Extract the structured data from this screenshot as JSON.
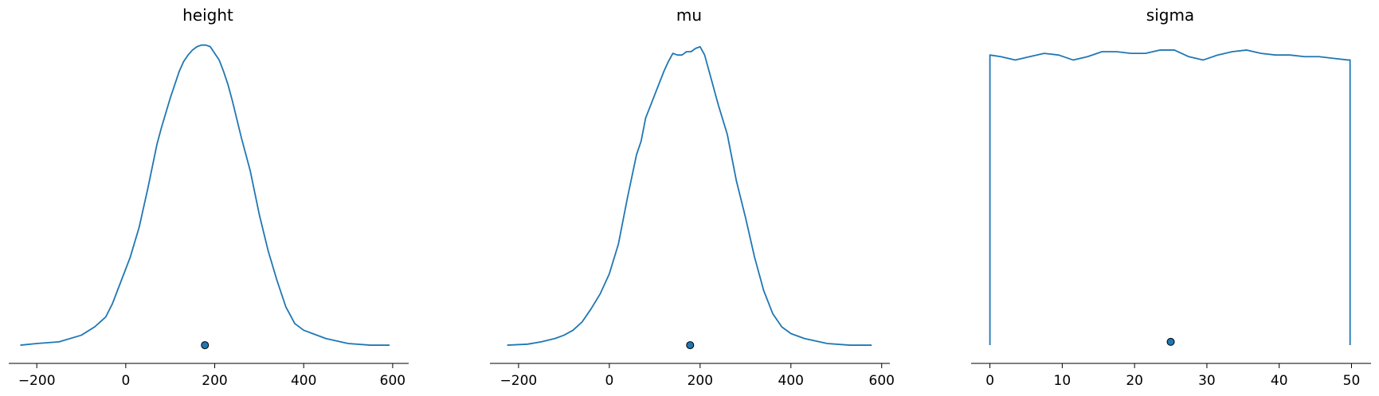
{
  "chart_data": [
    {
      "type": "area",
      "title": "height",
      "xlabel": "",
      "ylabel": "",
      "xlim": [
        -263,
        636
      ],
      "ylim": [
        0,
        1.0
      ],
      "xticks": [
        -200,
        0,
        200,
        400,
        600
      ],
      "xtick_labels": [
        "−200",
        "0",
        "200",
        "400",
        "600"
      ],
      "grid": false,
      "line_color": "#1f77b4",
      "point_color": "#1f77b4",
      "point_estimate": {
        "x": 178,
        "y": 0.055
      },
      "curve": {
        "x": [
          -237,
          -200,
          -150,
          -100,
          -70,
          -45,
          -30,
          -10,
          10,
          30,
          50,
          70,
          80,
          100,
          120,
          130,
          140,
          150,
          160,
          170,
          180,
          190,
          200,
          210,
          220,
          230,
          240,
          260,
          280,
          300,
          320,
          340,
          360,
          380,
          400,
          420,
          450,
          500,
          550,
          593
        ],
        "y": [
          0.055,
          0.06,
          0.065,
          0.085,
          0.11,
          0.14,
          0.18,
          0.25,
          0.32,
          0.41,
          0.53,
          0.66,
          0.71,
          0.8,
          0.88,
          0.91,
          0.93,
          0.945,
          0.955,
          0.96,
          0.96,
          0.955,
          0.935,
          0.915,
          0.88,
          0.84,
          0.79,
          0.68,
          0.58,
          0.45,
          0.34,
          0.25,
          0.17,
          0.12,
          0.1,
          0.09,
          0.075,
          0.06,
          0.055,
          0.055
        ]
      }
    },
    {
      "type": "area",
      "title": "mu",
      "xlabel": "",
      "ylabel": "",
      "xlim": [
        -263,
        618
      ],
      "ylim": [
        0,
        1.0
      ],
      "xticks": [
        -200,
        0,
        200,
        400,
        600
      ],
      "xtick_labels": [
        "−200",
        "0",
        "200",
        "400",
        "600"
      ],
      "grid": false,
      "line_color": "#1f77b4",
      "point_color": "#1f77b4",
      "point_estimate": {
        "x": 178,
        "y": 0.055
      },
      "curve": {
        "x": [
          -225,
          -180,
          -150,
          -120,
          -100,
          -80,
          -60,
          -40,
          -20,
          0,
          20,
          40,
          60,
          70,
          80,
          100,
          120,
          130,
          140,
          150,
          160,
          170,
          180,
          190,
          200,
          210,
          220,
          240,
          260,
          280,
          300,
          320,
          340,
          360,
          380,
          400,
          430,
          480,
          530,
          578
        ],
        "y": [
          0.055,
          0.058,
          0.065,
          0.075,
          0.085,
          0.1,
          0.125,
          0.165,
          0.21,
          0.27,
          0.36,
          0.5,
          0.63,
          0.67,
          0.74,
          0.81,
          0.88,
          0.91,
          0.935,
          0.93,
          0.93,
          0.94,
          0.94,
          0.95,
          0.955,
          0.93,
          0.88,
          0.78,
          0.69,
          0.55,
          0.44,
          0.32,
          0.22,
          0.15,
          0.11,
          0.09,
          0.075,
          0.06,
          0.055,
          0.055
        ]
      }
    },
    {
      "type": "area",
      "title": "sigma",
      "xlabel": "",
      "ylabel": "",
      "xlim": [
        -2.6,
        52.7
      ],
      "ylim": [
        0,
        1.0
      ],
      "xticks": [
        0,
        10,
        20,
        30,
        40,
        50
      ],
      "xtick_labels": [
        "0",
        "10",
        "20",
        "30",
        "40",
        "50"
      ],
      "grid": false,
      "line_color": "#1f77b4",
      "point_color": "#1f77b4",
      "point_estimate": {
        "x": 25,
        "y": 0.065
      },
      "curve": {
        "x": [
          0,
          0,
          1.5,
          3.5,
          5.5,
          7.5,
          9.5,
          11.5,
          13.5,
          15.5,
          17.5,
          19.5,
          21.5,
          23.5,
          25.5,
          27.5,
          29.5,
          31.5,
          33.5,
          35.5,
          37.5,
          39.5,
          41.5,
          43.5,
          45.5,
          47.5,
          49.5,
          49.8,
          49.8
        ],
        "y": [
          0.055,
          0.93,
          0.925,
          0.915,
          0.925,
          0.935,
          0.93,
          0.915,
          0.925,
          0.94,
          0.94,
          0.935,
          0.935,
          0.945,
          0.945,
          0.925,
          0.915,
          0.93,
          0.94,
          0.945,
          0.935,
          0.93,
          0.93,
          0.925,
          0.925,
          0.92,
          0.915,
          0.915,
          0.055
        ]
      }
    }
  ]
}
